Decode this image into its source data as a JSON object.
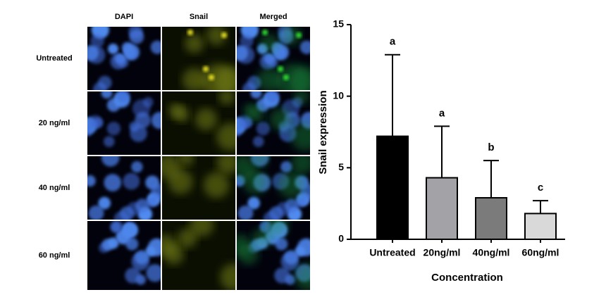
{
  "figure": {
    "column_headers": [
      "DAPI",
      "Snail",
      "Merged"
    ],
    "row_labels": [
      "Untreated",
      "20 ng/ml",
      "40 ng/ml",
      "60 ng/ml"
    ]
  },
  "chart_data": {
    "type": "bar",
    "y_label": "Snail expression",
    "x_label": "Concentration",
    "categories": [
      "Untreated",
      "20ng/ml",
      "40ng/ml",
      "60ng/ml"
    ],
    "values": [
      7.2,
      4.3,
      2.9,
      1.8
    ],
    "errors": [
      5.7,
      3.6,
      2.6,
      0.9
    ],
    "annotations": [
      "a",
      "a",
      "b",
      "c"
    ],
    "colors": [
      "#000000",
      "#a3a3a7",
      "#7b7b7b",
      "#d9d9d9"
    ],
    "ylim": [
      0,
      15
    ],
    "yticks": [
      0,
      5,
      10,
      15
    ]
  }
}
